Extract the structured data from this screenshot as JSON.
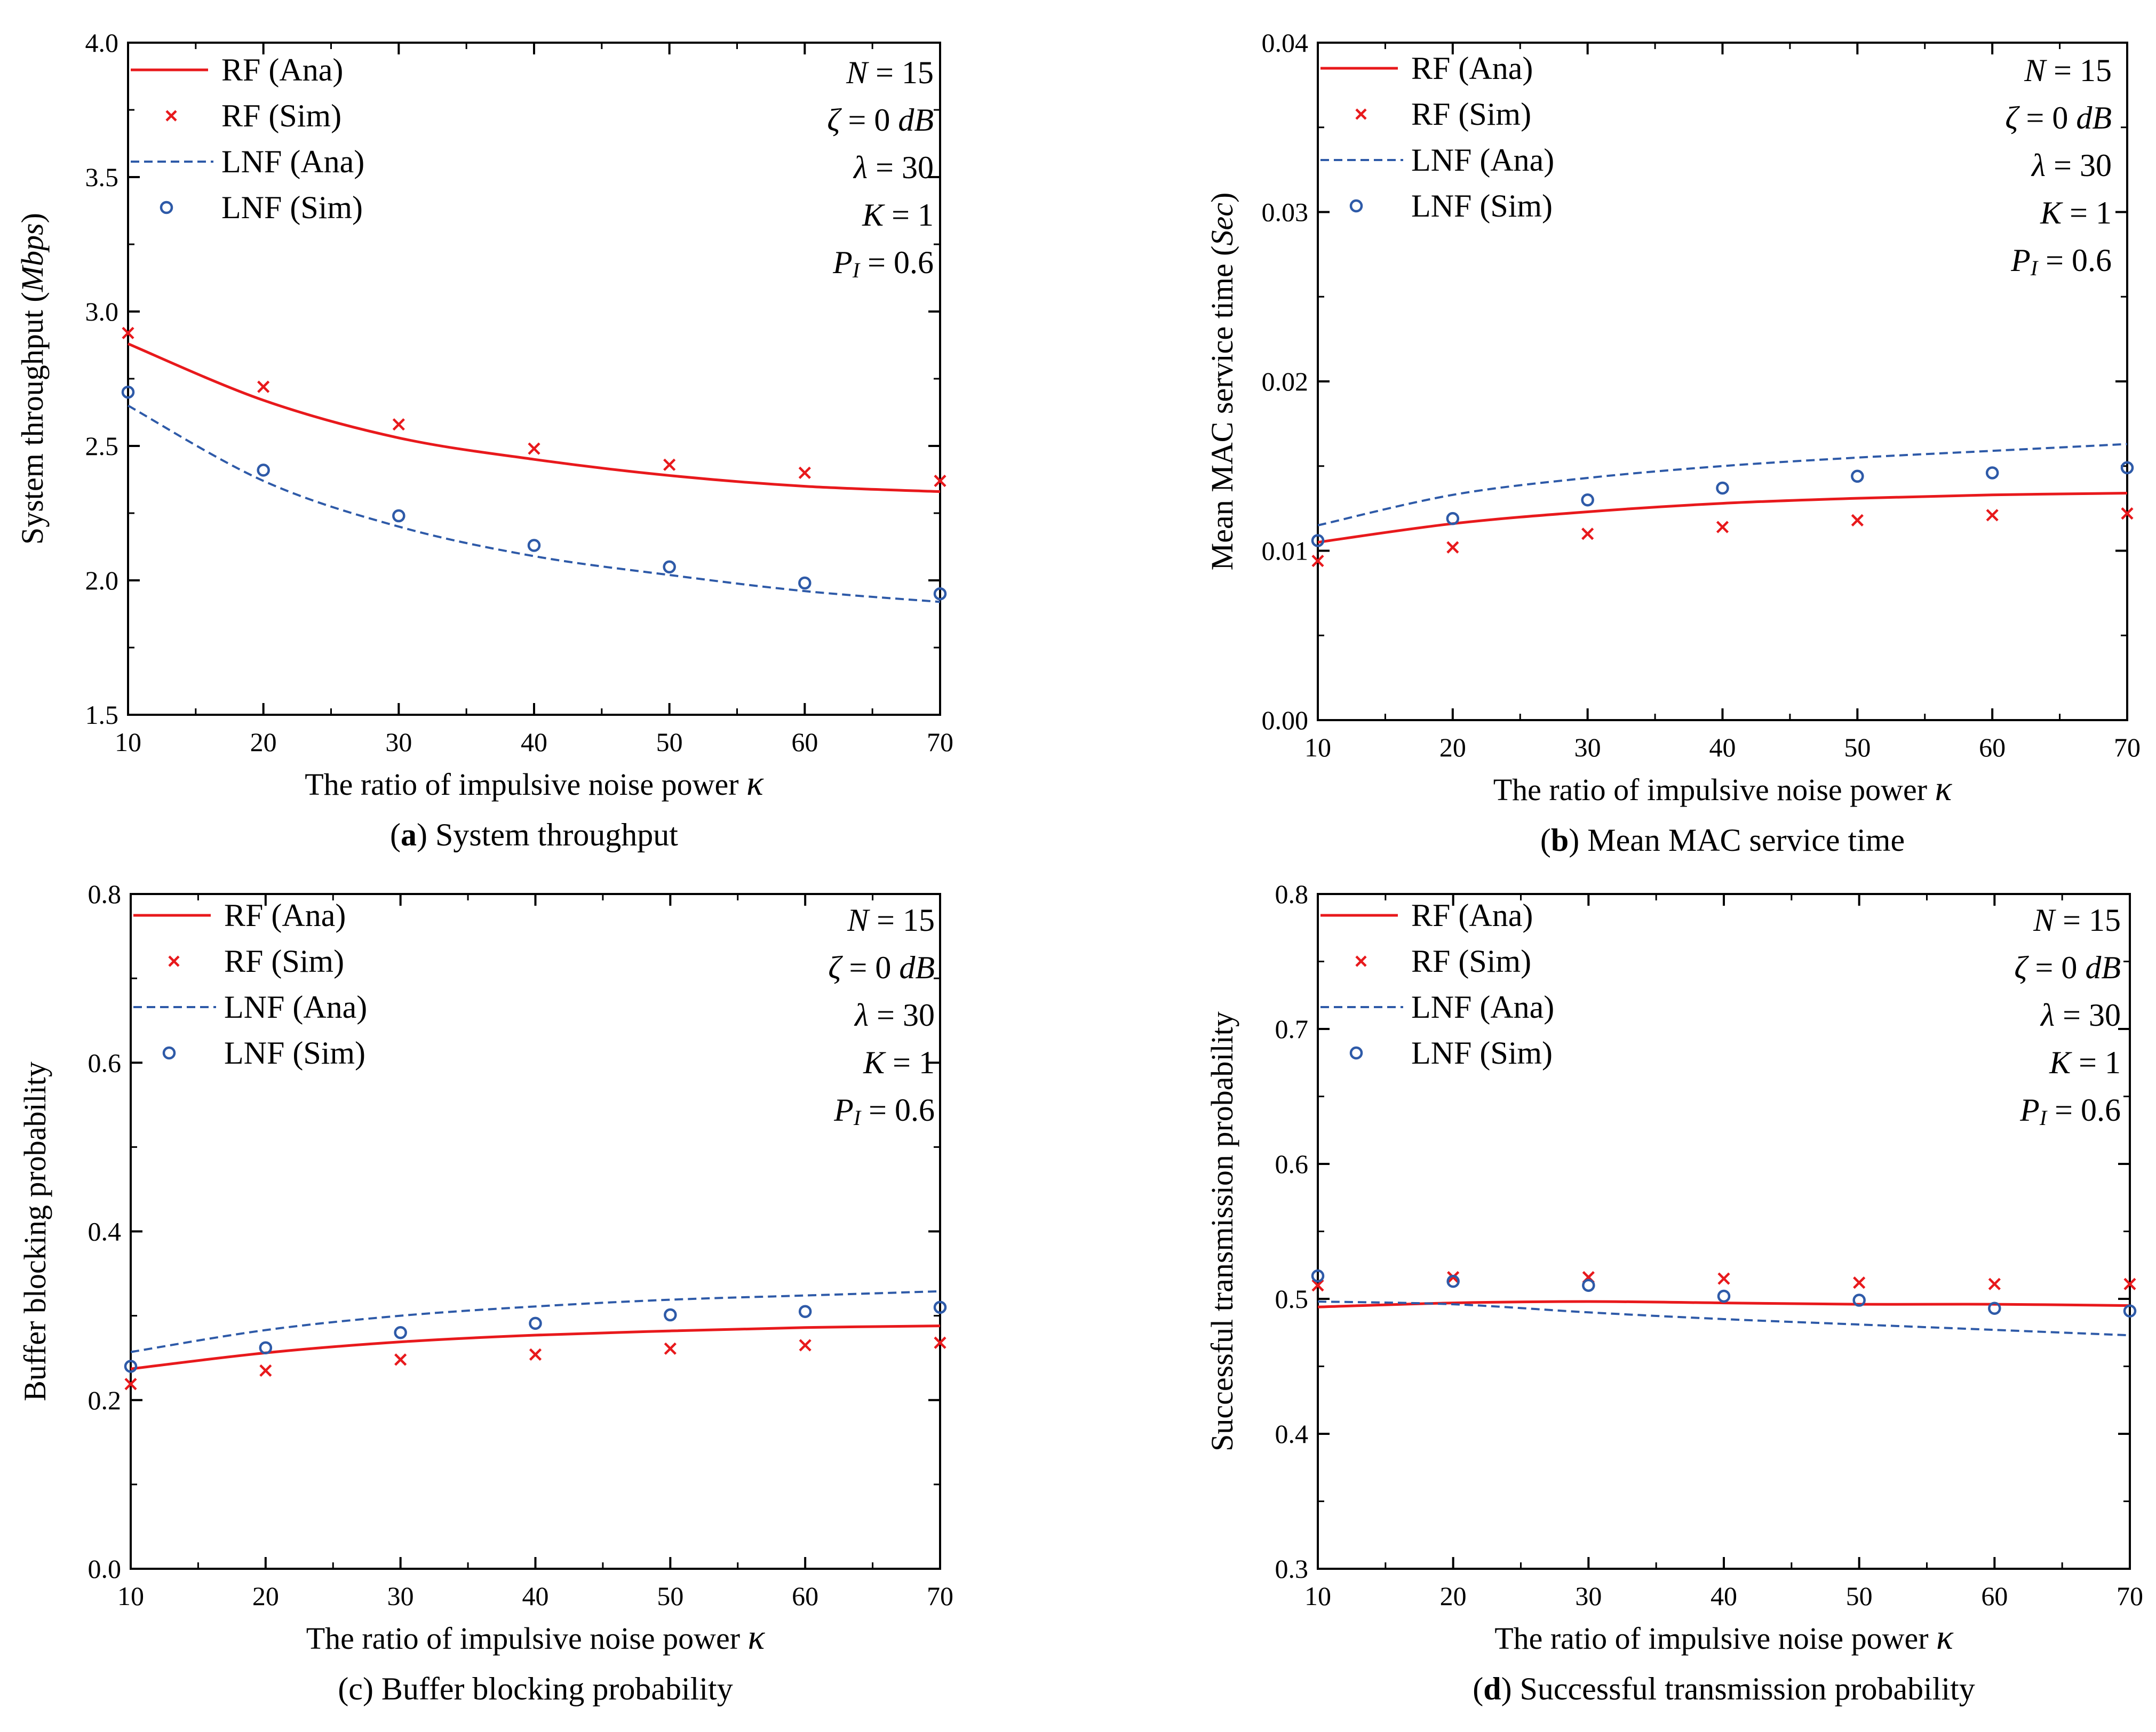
{
  "chart_data": [
    {
      "type": "line",
      "id": "a",
      "title": "System throughput",
      "caption_letter": "a",
      "caption_text": "System throughput",
      "caption_bold_letter": true,
      "ylabel": "System throughput (",
      "ylabel_unit": "Mbps",
      "ylabel_end": ")",
      "xlabel": "The ratio of impulsive noise power",
      "xlabel_symbol": "κ",
      "xlim": [
        10,
        70
      ],
      "ylim": [
        1.5,
        4.0
      ],
      "xticks": [
        10,
        20,
        30,
        40,
        50,
        60,
        70
      ],
      "xtick_labels": [
        "10",
        "20",
        "30",
        "40",
        "50",
        "60",
        "70"
      ],
      "yticks": [
        1.5,
        2.0,
        2.5,
        3.0,
        3.5,
        4.0
      ],
      "ytick_labels": [
        "1.5",
        "2.0",
        "2.5",
        "3.0",
        "3.5",
        "4.0"
      ],
      "series": [
        {
          "name": "RF (Ana)",
          "style": "solid",
          "color": "#e8191c",
          "x": [
            10,
            20,
            30,
            40,
            50,
            60,
            70
          ],
          "values": [
            2.88,
            2.67,
            2.53,
            2.45,
            2.39,
            2.35,
            2.33
          ]
        },
        {
          "name": "RF (Sim)",
          "style": "cross",
          "color": "#e8191c",
          "x": [
            10,
            20,
            30,
            40,
            50,
            60,
            70
          ],
          "values": [
            2.92,
            2.72,
            2.58,
            2.49,
            2.43,
            2.4,
            2.37
          ]
        },
        {
          "name": "LNF (Ana)",
          "style": "dashed",
          "color": "#2e5aa8",
          "x": [
            10,
            20,
            30,
            40,
            50,
            60,
            70
          ],
          "values": [
            2.65,
            2.37,
            2.2,
            2.09,
            2.02,
            1.96,
            1.92
          ]
        },
        {
          "name": "LNF (Sim)",
          "style": "circle",
          "color": "#2e5aa8",
          "x": [
            10,
            20,
            30,
            40,
            50,
            60,
            70
          ],
          "values": [
            2.7,
            2.41,
            2.24,
            2.13,
            2.05,
            1.99,
            1.95
          ]
        }
      ],
      "params": [
        "N = 15",
        "ζ = 0 dB",
        "λ = 30",
        "K = 1",
        "PI = 0.6"
      ]
    },
    {
      "type": "line",
      "id": "b",
      "title": "Mean MAC service time",
      "caption_letter": "b",
      "caption_text": "Mean MAC service time",
      "caption_bold_letter": true,
      "ylabel": "Mean MAC service time (",
      "ylabel_unit": "Sec",
      "ylabel_end": ")",
      "xlabel": "The ratio of impulsive noise power",
      "xlabel_symbol": "κ",
      "xlim": [
        10,
        70
      ],
      "ylim": [
        0.0,
        0.04
      ],
      "xticks": [
        10,
        20,
        30,
        40,
        50,
        60,
        70
      ],
      "xtick_labels": [
        "10",
        "20",
        "30",
        "40",
        "50",
        "60",
        "70"
      ],
      "yticks": [
        0.0,
        0.01,
        0.02,
        0.03,
        0.04
      ],
      "ytick_labels": [
        "0.00",
        "0.01",
        "0.02",
        "0.03",
        "0.04"
      ],
      "series": [
        {
          "name": "RF (Ana)",
          "style": "solid",
          "color": "#e8191c",
          "x": [
            10,
            20,
            30,
            40,
            50,
            60,
            70
          ],
          "values": [
            0.0105,
            0.0116,
            0.0123,
            0.0128,
            0.0131,
            0.0133,
            0.0134
          ]
        },
        {
          "name": "RF (Sim)",
          "style": "cross",
          "color": "#e8191c",
          "x": [
            10,
            20,
            30,
            40,
            50,
            60,
            70
          ],
          "values": [
            0.0094,
            0.0102,
            0.011,
            0.0114,
            0.0118,
            0.0121,
            0.0122
          ]
        },
        {
          "name": "LNF (Ana)",
          "style": "dashed",
          "color": "#2e5aa8",
          "x": [
            10,
            20,
            30,
            40,
            50,
            60,
            70
          ],
          "values": [
            0.0115,
            0.0133,
            0.0143,
            0.015,
            0.0155,
            0.0159,
            0.0163
          ]
        },
        {
          "name": "LNF (Sim)",
          "style": "circle",
          "color": "#2e5aa8",
          "x": [
            10,
            20,
            30,
            40,
            50,
            60,
            70
          ],
          "values": [
            0.0106,
            0.0119,
            0.013,
            0.0137,
            0.0144,
            0.0146,
            0.0149
          ]
        }
      ],
      "params": [
        "N = 15",
        "ζ = 0 dB",
        "λ = 30",
        "K = 1",
        "PI = 0.6"
      ]
    },
    {
      "type": "line",
      "id": "c",
      "title": "Buffer blocking probability",
      "caption_letter": "c",
      "caption_text": "Buffer blocking probability",
      "caption_bold_letter": false,
      "ylabel": "Buffer blocking probability",
      "ylabel_unit": "",
      "ylabel_end": "",
      "xlabel": "The ratio of impulsive noise power",
      "xlabel_symbol": "κ",
      "xlim": [
        10,
        70
      ],
      "ylim": [
        0.0,
        0.8
      ],
      "xticks": [
        10,
        20,
        30,
        40,
        50,
        60,
        70
      ],
      "xtick_labels": [
        "10",
        "20",
        "30",
        "40",
        "50",
        "60",
        "70"
      ],
      "yticks": [
        0.0,
        0.2,
        0.4,
        0.6,
        0.8
      ],
      "ytick_labels": [
        "0.0",
        "0.2",
        "0.4",
        "0.6",
        "0.8"
      ],
      "series": [
        {
          "name": "RF (Ana)",
          "style": "solid",
          "color": "#e8191c",
          "x": [
            10,
            20,
            30,
            40,
            50,
            60,
            70
          ],
          "values": [
            0.237,
            0.256,
            0.269,
            0.277,
            0.282,
            0.286,
            0.288
          ]
        },
        {
          "name": "RF (Sim)",
          "style": "cross",
          "color": "#e8191c",
          "x": [
            10,
            20,
            30,
            40,
            50,
            60,
            70
          ],
          "values": [
            0.219,
            0.235,
            0.248,
            0.254,
            0.261,
            0.265,
            0.268
          ]
        },
        {
          "name": "LNF (Ana)",
          "style": "dashed",
          "color": "#2e5aa8",
          "x": [
            10,
            20,
            30,
            40,
            50,
            60,
            70
          ],
          "values": [
            0.257,
            0.283,
            0.3,
            0.311,
            0.319,
            0.324,
            0.329
          ]
        },
        {
          "name": "LNF (Sim)",
          "style": "circle",
          "color": "#2e5aa8",
          "x": [
            10,
            20,
            30,
            40,
            50,
            60,
            70
          ],
          "values": [
            0.24,
            0.262,
            0.28,
            0.291,
            0.301,
            0.305,
            0.31
          ]
        }
      ],
      "params": [
        "N = 15",
        "ζ = 0 dB",
        "λ = 30",
        "K = 1",
        "PI = 0.6"
      ]
    },
    {
      "type": "line",
      "id": "d",
      "title": "Successful transmission probability",
      "caption_letter": "d",
      "caption_text": "Successful transmission probability",
      "caption_bold_letter": true,
      "ylabel": "Successful transmission probability",
      "ylabel_unit": "",
      "ylabel_end": "",
      "xlabel": "The ratio of impulsive noise power",
      "xlabel_symbol": "κ",
      "xlim": [
        10,
        70
      ],
      "ylim": [
        0.3,
        0.8
      ],
      "xticks": [
        10,
        20,
        30,
        40,
        50,
        60,
        70
      ],
      "xtick_labels": [
        "10",
        "20",
        "30",
        "40",
        "50",
        "60",
        "70"
      ],
      "yticks": [
        0.3,
        0.4,
        0.5,
        0.6,
        0.7,
        0.8
      ],
      "ytick_labels": [
        "0.3",
        "0.4",
        "0.5",
        "0.6",
        "0.7",
        "0.8"
      ],
      "series": [
        {
          "name": "RF (Ana)",
          "style": "solid",
          "color": "#e8191c",
          "x": [
            10,
            20,
            30,
            40,
            50,
            60,
            70
          ],
          "values": [
            0.494,
            0.497,
            0.498,
            0.497,
            0.496,
            0.496,
            0.495
          ]
        },
        {
          "name": "RF (Sim)",
          "style": "cross",
          "color": "#e8191c",
          "x": [
            10,
            20,
            30,
            40,
            50,
            60,
            70
          ],
          "values": [
            0.51,
            0.516,
            0.516,
            0.515,
            0.512,
            0.511,
            0.511
          ]
        },
        {
          "name": "LNF (Ana)",
          "style": "dashed",
          "color": "#2e5aa8",
          "x": [
            10,
            20,
            30,
            40,
            50,
            60,
            70
          ],
          "values": [
            0.498,
            0.496,
            0.49,
            0.485,
            0.481,
            0.477,
            0.473
          ]
        },
        {
          "name": "LNF (Sim)",
          "style": "circle",
          "color": "#2e5aa8",
          "x": [
            10,
            20,
            30,
            40,
            50,
            60,
            70
          ],
          "values": [
            0.517,
            0.513,
            0.51,
            0.502,
            0.499,
            0.493,
            0.491
          ]
        }
      ],
      "params": [
        "N = 15",
        "ζ = 0 dB",
        "λ = 30",
        "K = 1",
        "PI = 0.6"
      ]
    }
  ],
  "legend": [
    "RF (Ana)",
    "RF (Sim)",
    "LNF (Ana)",
    "LNF (Sim)"
  ],
  "param_parts": {
    "n_sym": "N",
    "n_val": " = 15",
    "zeta_sym": "ζ",
    "zeta_val": " = 0 ",
    "zeta_unit": "dB",
    "lambda_sym": "λ",
    "lambda_val": " = 30",
    "k_sym": "K",
    "k_val": " = 1",
    "p_sym": "P",
    "p_sub": "I",
    "p_val": " = 0.6"
  }
}
